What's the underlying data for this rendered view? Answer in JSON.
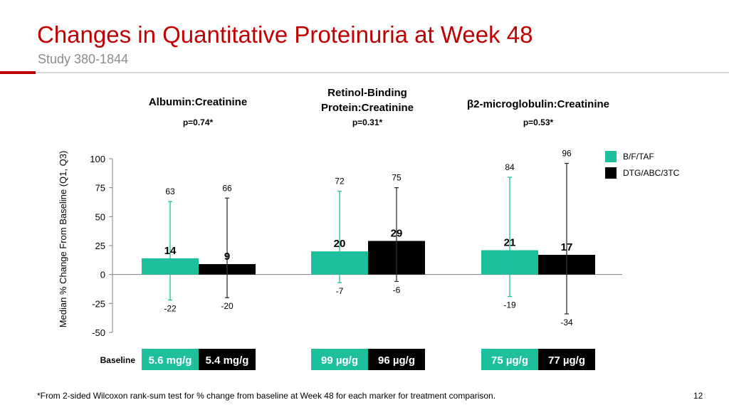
{
  "header": {
    "title": "Changes in Quantitative Proteinuria at Week 48",
    "subtitle": "Study 380-1844"
  },
  "footer": {
    "footnote": "*From 2-sided Wilcoxon rank-sum test for % change from baseline at Week 48 for each marker for treatment comparison.",
    "page_number": "12"
  },
  "colors": {
    "bftaf": "#1dbf9d",
    "dtg": "#000000",
    "title": "#c00000"
  },
  "chart_data": {
    "type": "bar",
    "ylabel": "Median % Change From Baseline (Q1, Q3)",
    "ylim": [
      -50,
      100
    ],
    "yticks": [
      100,
      75,
      50,
      25,
      0,
      -25,
      -50
    ],
    "grid": false,
    "legend_position": "right",
    "baseline_label": "Baseline",
    "groups": [
      {
        "title": [
          "Albumin:Creatinine"
        ],
        "pvalue": "p=0.74*",
        "bars": [
          {
            "series": "B/F/TAF",
            "median": 14,
            "q1": -22,
            "q3": 63,
            "baseline": "5.6 mg/g"
          },
          {
            "series": "DTG/ABC/3TC",
            "median": 9,
            "q1": -20,
            "q3": 66,
            "baseline": "5.4 mg/g"
          }
        ]
      },
      {
        "title": [
          "Retinol-Binding",
          "Protein:Creatinine"
        ],
        "pvalue": "p=0.31*",
        "bars": [
          {
            "series": "B/F/TAF",
            "median": 20,
            "q1": -7,
            "q3": 72,
            "baseline": "99 µg/g"
          },
          {
            "series": "DTG/ABC/3TC",
            "median": 29,
            "q1": -6,
            "q3": 75,
            "baseline": "96 µg/g"
          }
        ]
      },
      {
        "title": [
          "β2-microglobulin:Creatinine"
        ],
        "pvalue": "p=0.53*",
        "bars": [
          {
            "series": "B/F/TAF",
            "median": 21,
            "q1": -19,
            "q3": 84,
            "baseline": "75 µg/g"
          },
          {
            "series": "DTG/ABC/3TC",
            "median": 17,
            "q1": -34,
            "q3": 96,
            "baseline": "77 µg/g"
          }
        ]
      }
    ],
    "series": [
      {
        "name": "B/F/TAF",
        "color": "#1dbf9d"
      },
      {
        "name": "DTG/ABC/3TC",
        "color": "#000000"
      }
    ]
  }
}
